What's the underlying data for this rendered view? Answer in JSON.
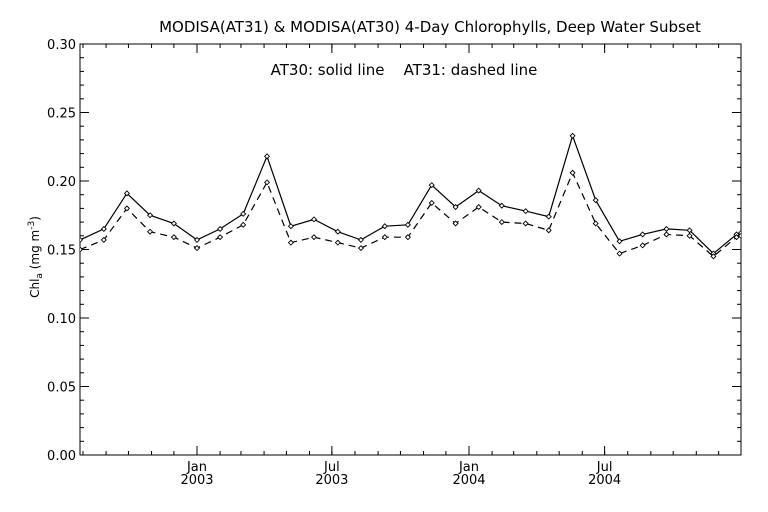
{
  "chart_data": {
    "type": "line",
    "title": "MODISA(AT31) & MODISA(AT30) 4-Day Chlorophylls, Deep Water Subset",
    "annotation": "AT30: solid line    AT31: dashed line",
    "ylabel": {
      "main": "Chl",
      "sub": "a",
      "units": " (mg m",
      "sup": "-3",
      "close": ")"
    },
    "xlabel": "",
    "ylim": [
      0.0,
      0.3
    ],
    "yticks": [
      "0.00",
      "0.05",
      "0.10",
      "0.15",
      "0.20",
      "0.25",
      "0.30"
    ],
    "xlim": [
      "2002-07-28",
      "2004-12-31"
    ],
    "xticks": [
      {
        "month": "Jan",
        "year": "2003",
        "date": "2003-01-01"
      },
      {
        "month": "Jul",
        "year": "2003",
        "date": "2003-07-01"
      },
      {
        "month": "Jan",
        "year": "2004",
        "date": "2004-01-01"
      },
      {
        "month": "Jul",
        "year": "2004",
        "date": "2004-07-01"
      }
    ],
    "grid": false,
    "x": [
      "2002-07-28",
      "2002-08-29",
      "2002-09-29",
      "2002-10-30",
      "2002-12-01",
      "2003-01-01",
      "2003-02-01",
      "2003-03-04",
      "2003-04-05",
      "2003-05-07",
      "2003-06-07",
      "2003-07-09",
      "2003-08-09",
      "2003-09-10",
      "2003-10-11",
      "2003-11-12",
      "2003-12-14",
      "2004-01-14",
      "2004-02-14",
      "2004-03-17",
      "2004-04-17",
      "2004-05-19",
      "2004-06-19",
      "2004-07-21",
      "2004-08-21",
      "2004-09-22",
      "2004-10-23",
      "2004-11-24",
      "2004-12-25",
      "2004-12-31"
    ],
    "series": [
      {
        "name": "AT30",
        "style": "solid",
        "values": [
          0.157,
          0.165,
          0.191,
          0.175,
          0.169,
          0.157,
          0.165,
          0.176,
          0.218,
          0.167,
          0.172,
          0.163,
          0.157,
          0.167,
          0.168,
          0.197,
          0.181,
          0.193,
          0.182,
          0.178,
          0.174,
          0.233,
          0.186,
          0.156,
          0.161,
          0.165,
          0.164,
          0.147,
          0.161,
          0.162
        ]
      },
      {
        "name": "AT31",
        "style": "dashed",
        "values": [
          0.15,
          0.157,
          0.18,
          0.163,
          0.159,
          0.151,
          0.159,
          0.168,
          0.199,
          0.155,
          0.159,
          0.155,
          0.151,
          0.159,
          0.159,
          0.184,
          0.169,
          0.181,
          0.17,
          0.169,
          0.164,
          0.206,
          0.169,
          0.147,
          0.153,
          0.161,
          0.16,
          0.145,
          0.159,
          0.16
        ]
      }
    ]
  }
}
